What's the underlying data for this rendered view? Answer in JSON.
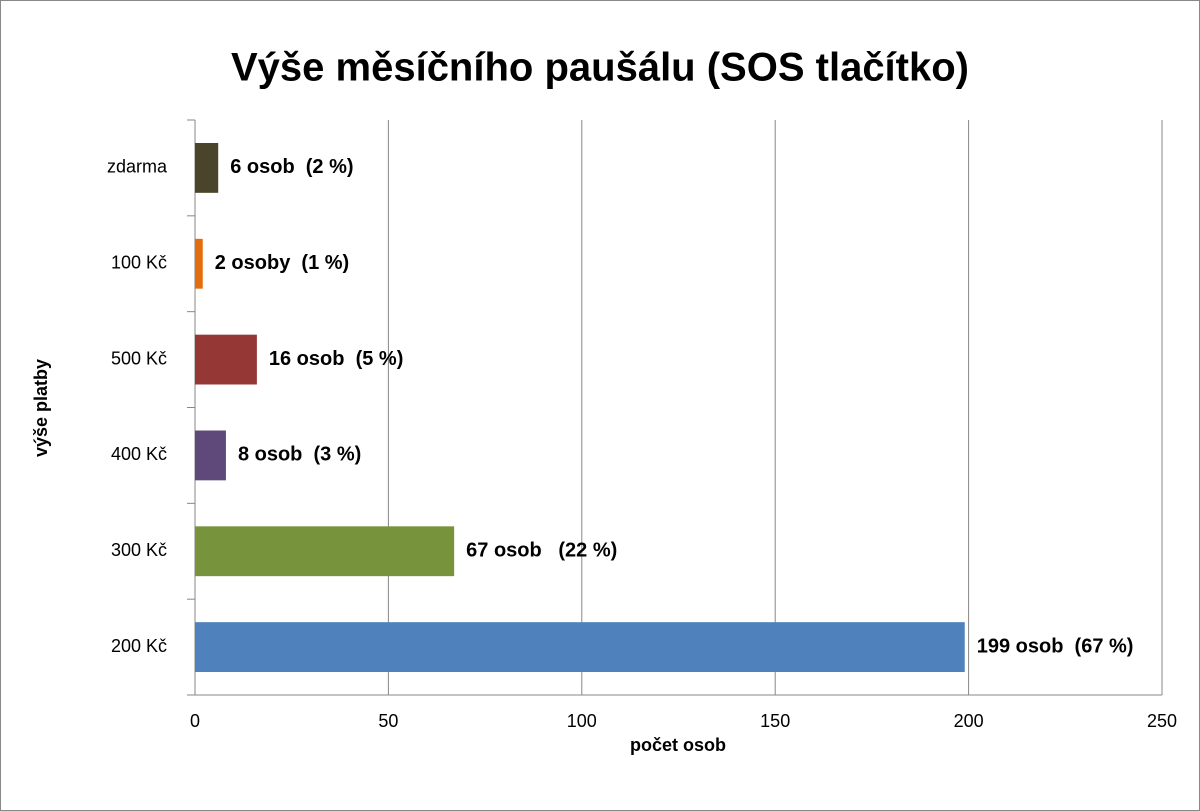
{
  "chart_data": {
    "type": "barh",
    "title": "Výše měsíčního paušálu (SOS tlačítko)",
    "x_label": "počet osob",
    "y_label": "výše platby",
    "categories": [
      "zdarma",
      "100 Kč",
      "500 Kč",
      "400 Kč",
      "300 Kč",
      "200 Kč"
    ],
    "values": [
      6,
      2,
      16,
      8,
      67,
      199
    ],
    "value_labels": [
      "6 osob  (2 %)",
      "2 osoby  (1 %)",
      "16 osob  (5 %)",
      "8 osob  (3 %)",
      "67 osob   (22 %)",
      "199 osob  (67 %)"
    ],
    "colors": [
      "#4a452a",
      "#e46c0a",
      "#953735",
      "#5f497a",
      "#77933c",
      "#4f81bd"
    ],
    "xlim": [
      0,
      250
    ],
    "xticks": [
      0,
      50,
      100,
      150,
      200,
      250
    ],
    "grid": true
  }
}
